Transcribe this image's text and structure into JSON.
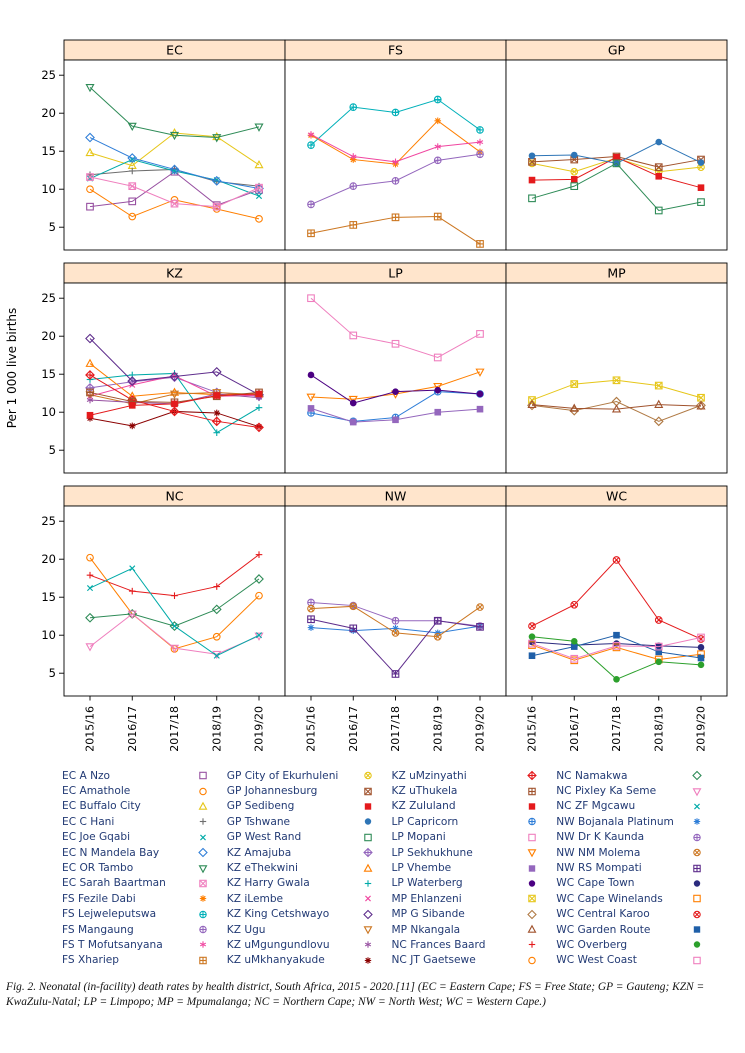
{
  "figure": {
    "caption": "Fig. 2. Neonatal (in-facility) death rates by health district, South Africa, 2015 - 2020.[11] (EC = Eastern Cape; FS = Free State; GP = Gauteng; KZN = KwaZulu-Natal; LP = Limpopo; MP = Mpumalanga; NC = Northern Cape; NW = North West; WC = Western Cape.)"
  },
  "chart_data": {
    "type": "line",
    "title": "",
    "ylabel": "Per 1 000 live births",
    "x": [
      "2015/16",
      "2016/17",
      "2017/18",
      "2018/19",
      "2019/20"
    ],
    "ylim": [
      2,
      27
    ],
    "yticks": [
      5,
      10,
      15,
      20,
      25
    ],
    "grid": "off",
    "legend_position": "bottom",
    "legend_columns": 4,
    "strip_fill": "#ffe5cc",
    "panels": [
      {
        "title": "EC",
        "series": [
          {
            "name": "EC A Nzo",
            "color": "#9750a1",
            "marker": "square",
            "values": [
              7.7,
              8.4,
              12.3,
              7.9,
              9.9
            ]
          },
          {
            "name": "EC Amathole",
            "color": "#ff7f00",
            "marker": "circle",
            "values": [
              10.0,
              6.4,
              8.6,
              7.4,
              6.1
            ]
          },
          {
            "name": "EC Buffalo City",
            "color": "#e6c619",
            "marker": "triangle",
            "values": [
              14.8,
              13.1,
              17.4,
              16.9,
              13.2
            ]
          },
          {
            "name": "EC C Hani",
            "color": "#6e6e6e",
            "marker": "plus",
            "values": [
              11.9,
              12.4,
              12.6,
              11.0,
              10.4
            ]
          },
          {
            "name": "EC Joe Gqabi",
            "color": "#00aaa8",
            "marker": "x",
            "values": [
              11.4,
              13.9,
              12.4,
              11.2,
              9.1
            ]
          },
          {
            "name": "EC N Mandela Bay",
            "color": "#2f7ed8",
            "marker": "diamond",
            "values": [
              16.8,
              14.1,
              12.6,
              11.1,
              10.1
            ]
          },
          {
            "name": "EC OR Tambo",
            "color": "#2e8b57",
            "marker": "triangle-down",
            "values": [
              23.4,
              18.3,
              17.1,
              16.8,
              18.2
            ]
          },
          {
            "name": "EC Sarah Baartman",
            "color": "#ef7fbe",
            "marker": "square-x",
            "values": [
              11.6,
              10.4,
              8.1,
              7.7,
              10.2
            ]
          }
        ]
      },
      {
        "title": "FS",
        "series": [
          {
            "name": "FS Fezile Dabi",
            "color": "#ff7f00",
            "marker": "asterisk",
            "values": [
              17.1,
              13.9,
              13.3,
              19.0,
              14.9
            ]
          },
          {
            "name": "FS Lejweleputswa",
            "color": "#00b0b9",
            "marker": "circle-plus",
            "values": [
              15.8,
              20.8,
              20.1,
              21.8,
              17.8
            ]
          },
          {
            "name": "FS Mangaung",
            "color": "#9467bd",
            "marker": "circle-plus",
            "values": [
              8.0,
              10.4,
              11.1,
              13.8,
              14.6
            ]
          },
          {
            "name": "FS T Mofutsanyana",
            "color": "#f046a0",
            "marker": "star",
            "values": [
              17.2,
              14.3,
              13.6,
              15.6,
              16.2
            ]
          },
          {
            "name": "FS Xhariep",
            "color": "#cc7722",
            "marker": "square-plus",
            "values": [
              4.2,
              5.3,
              6.3,
              6.4,
              2.8
            ]
          }
        ]
      },
      {
        "title": "GP",
        "series": [
          {
            "name": "GP City of Ekurhuleni",
            "color": "#e6c619",
            "marker": "circle-x",
            "values": [
              13.4,
              12.3,
              14.1,
              12.3,
              12.9
            ]
          },
          {
            "name": "GP Johannesburg",
            "color": "#a0522d",
            "marker": "square-x",
            "values": [
              13.6,
              13.9,
              14.3,
              12.9,
              13.9
            ]
          },
          {
            "name": "GP Sedibeng",
            "color": "#e41a1c",
            "marker": "filled-square",
            "values": [
              11.2,
              11.3,
              14.2,
              11.7,
              10.2
            ]
          },
          {
            "name": "GP Tshwane",
            "color": "#2e75b6",
            "marker": "filled-circle",
            "values": [
              14.4,
              14.5,
              13.4,
              16.2,
              13.5
            ]
          },
          {
            "name": "GP West Rand",
            "color": "#2e8b57",
            "marker": "square",
            "values": [
              8.8,
              10.4,
              13.4,
              7.2,
              8.3
            ]
          }
        ]
      },
      {
        "title": "KZ",
        "series": [
          {
            "name": "KZ Amajuba",
            "color": "#9467bd",
            "marker": "diamond-plus",
            "values": [
              13.2,
              14.0,
              14.6,
              12.6,
              12.1
            ]
          },
          {
            "name": "KZ eThekwini",
            "color": "#ff7f00",
            "marker": "triangle",
            "values": [
              16.4,
              12.1,
              12.6,
              12.3,
              12.4
            ]
          },
          {
            "name": "KZ Harry Gwala",
            "color": "#00aaa8",
            "marker": "plus",
            "values": [
              14.3,
              14.9,
              15.1,
              7.3,
              10.6
            ]
          },
          {
            "name": "KZ iLembe",
            "color": "#f046a0",
            "marker": "x",
            "values": [
              12.1,
              13.6,
              14.8,
              12.1,
              12.2
            ]
          },
          {
            "name": "KZ King Cetshwayo",
            "color": "#5e2d8c",
            "marker": "diamond",
            "values": [
              19.7,
              14.1,
              14.7,
              15.3,
              12.3
            ]
          },
          {
            "name": "KZ Ugu",
            "color": "#cc7722",
            "marker": "triangle-down",
            "values": [
              12.3,
              11.1,
              12.4,
              12.6,
              12.3
            ]
          },
          {
            "name": "KZ uMgungundlovu",
            "color": "#9750a1",
            "marker": "star",
            "values": [
              11.6,
              11.3,
              11.1,
              12.4,
              11.9
            ]
          },
          {
            "name": "KZ uMkhanyakude",
            "color": "#8b0000",
            "marker": "asterisk",
            "values": [
              9.2,
              8.2,
              10.1,
              9.9,
              8.1
            ]
          },
          {
            "name": "KZ uMzinyathi",
            "color": "#e41a1c",
            "marker": "diamond-plus",
            "values": [
              14.9,
              11.6,
              10.1,
              8.8,
              8.0
            ]
          },
          {
            "name": "KZ uThukela",
            "color": "#a0522d",
            "marker": "square-plus",
            "values": [
              12.6,
              11.4,
              11.3,
              12.1,
              12.6
            ]
          },
          {
            "name": "KZ Zululand",
            "color": "#e41a1c",
            "marker": "filled-square",
            "values": [
              9.6,
              10.9,
              11.1,
              12.2,
              12.4
            ]
          }
        ]
      },
      {
        "title": "LP",
        "series": [
          {
            "name": "LP Capricorn",
            "color": "#2f7ed8",
            "marker": "circle-plus",
            "values": [
              9.9,
              8.8,
              9.3,
              12.7,
              12.4
            ]
          },
          {
            "name": "LP Mopani",
            "color": "#ef7fbe",
            "marker": "square",
            "values": [
              25.0,
              20.1,
              19.0,
              17.2,
              20.3
            ]
          },
          {
            "name": "LP Sekhukhune",
            "color": "#ff7f00",
            "marker": "triangle-down",
            "values": [
              12.0,
              11.7,
              12.4,
              13.4,
              15.3
            ]
          },
          {
            "name": "LP Vhembe",
            "color": "#9467bd",
            "marker": "filled-square",
            "values": [
              10.5,
              8.7,
              9.0,
              10.0,
              10.4
            ]
          },
          {
            "name": "LP Waterberg",
            "color": "#4b0082",
            "marker": "filled-circle",
            "values": [
              14.9,
              11.2,
              12.7,
              12.9,
              12.4
            ]
          }
        ]
      },
      {
        "title": "MP",
        "series": [
          {
            "name": "MP Ehlanzeni",
            "color": "#e6c619",
            "marker": "square-x",
            "values": [
              11.6,
              13.7,
              14.2,
              13.5,
              11.9
            ]
          },
          {
            "name": "MP G Sibande",
            "color": "#b07a45",
            "marker": "diamond",
            "values": [
              10.9,
              10.2,
              11.4,
              8.8,
              10.9
            ]
          },
          {
            "name": "MP Nkangala",
            "color": "#a0522d",
            "marker": "triangle",
            "values": [
              11.0,
              10.5,
              10.4,
              11.0,
              10.8
            ]
          }
        ]
      },
      {
        "title": "NC",
        "series": [
          {
            "name": "NC Frances Baard",
            "color": "#e41a1c",
            "marker": "plus",
            "values": [
              17.9,
              15.8,
              15.2,
              16.4,
              20.6
            ]
          },
          {
            "name": "NC JT Gaetsewe",
            "color": "#ff7f00",
            "marker": "circle",
            "values": [
              20.2,
              12.8,
              8.2,
              9.8,
              15.2
            ]
          },
          {
            "name": "NC Namakwa",
            "color": "#2e8b57",
            "marker": "diamond",
            "values": [
              12.3,
              12.8,
              11.2,
              13.4,
              17.4
            ]
          },
          {
            "name": "NC Pixley Ka Seme",
            "color": "#ef7fbe",
            "marker": "triangle-down",
            "values": [
              8.5,
              12.8,
              8.3,
              7.5,
              9.9
            ]
          },
          {
            "name": "NC ZF Mgcawu",
            "color": "#00aaa8",
            "marker": "x",
            "values": [
              16.2,
              18.8,
              11.2,
              7.3,
              10.0
            ]
          }
        ]
      },
      {
        "title": "NW",
        "series": [
          {
            "name": "NW Bojanala Platinum",
            "color": "#2f7ed8",
            "marker": "asterisk",
            "values": [
              11.0,
              10.6,
              10.9,
              10.3,
              11.2
            ]
          },
          {
            "name": "NW Dr K Kaunda",
            "color": "#9467bd",
            "marker": "circle-plus",
            "values": [
              14.3,
              13.9,
              11.9,
              11.9,
              11.2
            ]
          },
          {
            "name": "NW NM Molema",
            "color": "#cc7722",
            "marker": "circle-x",
            "values": [
              13.5,
              13.8,
              10.3,
              9.8,
              13.7
            ]
          },
          {
            "name": "NW RS Mompati",
            "color": "#5e2d8c",
            "marker": "square-plus",
            "values": [
              12.1,
              10.9,
              4.9,
              11.9,
              11.1
            ]
          }
        ]
      },
      {
        "title": "WC",
        "series": [
          {
            "name": "WC Cape Town",
            "color": "#2a2a7e",
            "marker": "filled-circle",
            "values": [
              9.1,
              8.7,
              8.9,
              8.6,
              8.4
            ]
          },
          {
            "name": "WC Cape Winelands",
            "color": "#ff7f00",
            "marker": "square",
            "values": [
              8.7,
              6.7,
              8.4,
              6.8,
              7.5
            ]
          },
          {
            "name": "WC Central Karoo",
            "color": "#e41a1c",
            "marker": "circle-x",
            "values": [
              11.2,
              14.0,
              19.9,
              12.0,
              9.5
            ]
          },
          {
            "name": "WC Garden Route",
            "color": "#1f5fa8",
            "marker": "filled-square",
            "values": [
              7.3,
              8.5,
              10.0,
              7.8,
              7.0
            ]
          },
          {
            "name": "WC Overberg",
            "color": "#2ca02c",
            "marker": "filled-circle",
            "values": [
              9.8,
              9.2,
              4.2,
              6.5,
              6.1
            ]
          },
          {
            "name": "WC West Coast",
            "color": "#ef7fbe",
            "marker": "square",
            "values": [
              8.9,
              6.9,
              8.6,
              8.5,
              9.7
            ]
          }
        ]
      }
    ]
  }
}
